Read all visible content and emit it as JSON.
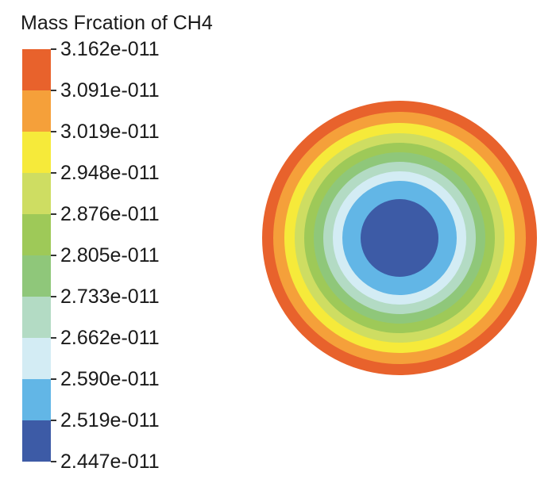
{
  "legend": {
    "title": "Mass Frcation of CH4",
    "tick_labels": [
      "3.162e-011",
      "3.091e-011",
      "3.019e-011",
      "2.948e-011",
      "2.876e-011",
      "2.805e-011",
      "2.733e-011",
      "2.662e-011",
      "2.590e-011",
      "2.519e-011",
      "2.447e-011"
    ],
    "band_colors": [
      "#e8622c",
      "#f5a03a",
      "#f6ea3a",
      "#cedd62",
      "#9ec958",
      "#8fc77a",
      "#b3dbc4",
      "#d3ecf4",
      "#62b6e6",
      "#3d5ba6"
    ]
  },
  "contour": {
    "ring_colors_outer_to_inner": [
      "#e8622c",
      "#f5a03a",
      "#f6ea3a",
      "#cedd62",
      "#9ec958",
      "#8fc77a",
      "#b3dbc4",
      "#d3ecf4",
      "#62b6e6",
      "#3d5ba6"
    ]
  }
}
